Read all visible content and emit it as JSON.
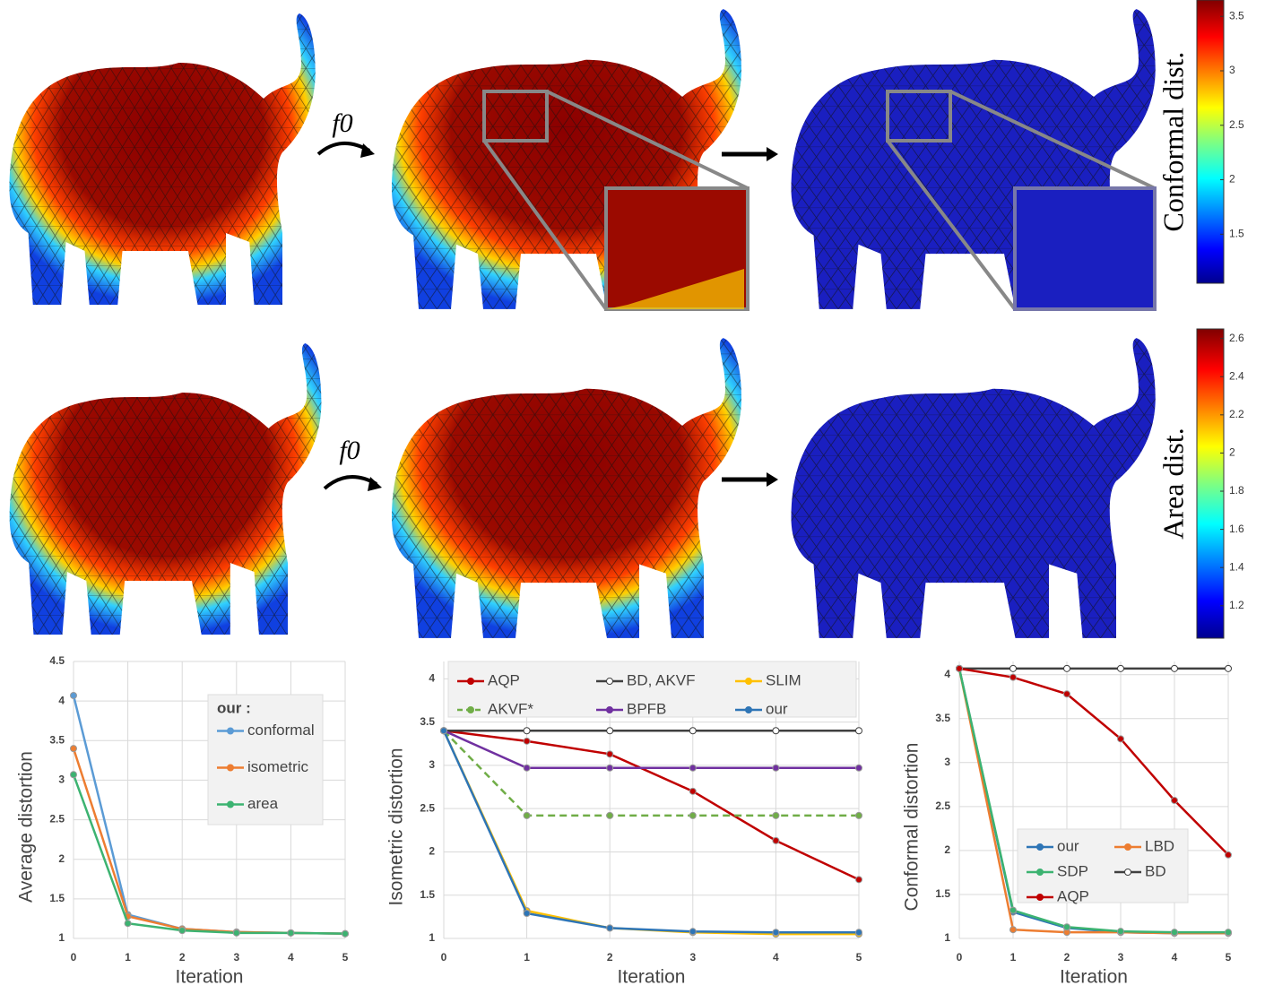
{
  "arrow_labels": [
    "f0",
    "f0"
  ],
  "colorbars": [
    {
      "label": "Conformal dist.",
      "lim": [
        1.05,
        3.65
      ],
      "ticks": [
        1.5,
        2,
        2.5,
        3,
        3.5
      ]
    },
    {
      "label": "Area dist.",
      "lim": [
        1.03,
        2.65
      ],
      "ticks": [
        1.2,
        1.4,
        1.6,
        1.8,
        2,
        2.2,
        2.4,
        2.6
      ]
    }
  ],
  "chart_data": [
    {
      "type": "line",
      "xlabel": "Iteration",
      "ylabel": "Average  distortion",
      "legend_title": "our :",
      "legend": "right",
      "x": [
        0,
        1,
        2,
        3,
        4,
        5
      ],
      "xlim": [
        0,
        5
      ],
      "xticks": [
        0,
        1,
        2,
        3,
        4,
        5
      ],
      "ylim": [
        1,
        4.5
      ],
      "yticks": [
        1,
        1.5,
        2,
        2.5,
        3,
        3.5,
        4,
        4.5
      ],
      "grid": true,
      "series": [
        {
          "name": "conformal",
          "color": "#5b9bd5",
          "values": [
            4.07,
            1.3,
            1.12,
            1.08,
            1.07,
            1.06
          ]
        },
        {
          "name": "isometric",
          "color": "#ed7d31",
          "values": [
            3.4,
            1.28,
            1.12,
            1.08,
            1.07,
            1.06
          ]
        },
        {
          "name": "area",
          "color": "#3cb371",
          "values": [
            3.07,
            1.19,
            1.1,
            1.07,
            1.07,
            1.06
          ]
        }
      ]
    },
    {
      "type": "line",
      "xlabel": "Iteration",
      "ylabel": "Isometric distortion",
      "legend": "top",
      "x": [
        0,
        1,
        2,
        3,
        4,
        5
      ],
      "xlim": [
        0,
        5
      ],
      "xticks": [
        0,
        1,
        2,
        3,
        4,
        5
      ],
      "ylim": [
        1,
        4.2
      ],
      "yticks": [
        1,
        1.5,
        2,
        2.5,
        3,
        3.5,
        4
      ],
      "grid": true,
      "series": [
        {
          "name": "AQP",
          "color": "#c00000",
          "values": [
            3.4,
            3.28,
            3.13,
            2.7,
            2.13,
            1.68
          ]
        },
        {
          "name": "BD, AKVF",
          "color": "#404040",
          "marker": "open",
          "values": [
            3.4,
            3.4,
            3.4,
            3.4,
            3.4,
            3.4
          ]
        },
        {
          "name": "SLIM",
          "color": "#ffc000",
          "values": [
            3.4,
            1.32,
            1.12,
            1.07,
            1.05,
            1.05
          ]
        },
        {
          "name": "AKVF*",
          "color": "#70ad47",
          "dash": true,
          "values": [
            3.4,
            2.42,
            2.42,
            2.42,
            2.42,
            2.42
          ]
        },
        {
          "name": "BPFB",
          "color": "#7030a0",
          "values": [
            3.4,
            2.97,
            2.97,
            2.97,
            2.97,
            2.97
          ]
        },
        {
          "name": "our",
          "color": "#2e75b6",
          "values": [
            3.4,
            1.29,
            1.12,
            1.08,
            1.07,
            1.07
          ]
        }
      ]
    },
    {
      "type": "line",
      "xlabel": "Iteration",
      "ylabel": "Conformal  distortion",
      "legend": "bottom",
      "x": [
        0,
        1,
        2,
        3,
        4,
        5
      ],
      "xlim": [
        0,
        5
      ],
      "xticks": [
        0,
        1,
        2,
        3,
        4,
        5
      ],
      "ylim": [
        1,
        4.15
      ],
      "yticks": [
        1,
        1.5,
        2,
        2.5,
        3,
        3.5,
        4
      ],
      "grid": true,
      "series": [
        {
          "name": "our",
          "color": "#2e75b6",
          "values": [
            4.07,
            1.3,
            1.12,
            1.07,
            1.06,
            1.06
          ]
        },
        {
          "name": "LBD",
          "color": "#ed7d31",
          "values": [
            4.07,
            1.1,
            1.07,
            1.07,
            1.06,
            1.06
          ]
        },
        {
          "name": "SDP",
          "color": "#3cb371",
          "values": [
            4.07,
            1.32,
            1.13,
            1.08,
            1.07,
            1.07
          ]
        },
        {
          "name": "BD",
          "color": "#404040",
          "marker": "open",
          "values": [
            4.07,
            4.07,
            4.07,
            4.07,
            4.07,
            4.07
          ]
        },
        {
          "name": "AQP",
          "color": "#c00000",
          "values": [
            4.07,
            3.97,
            3.78,
            3.27,
            2.57,
            1.95
          ]
        }
      ]
    }
  ]
}
